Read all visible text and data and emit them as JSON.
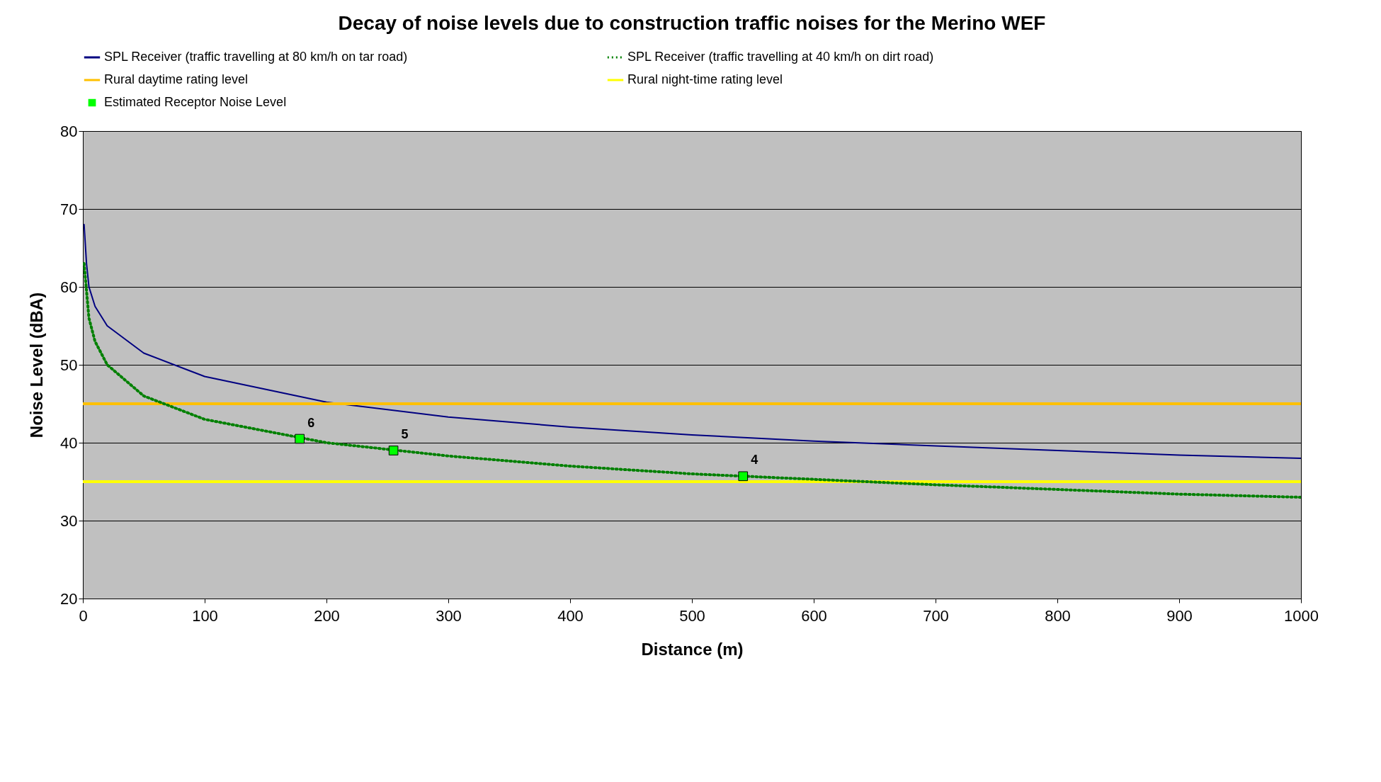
{
  "chart_data": {
    "type": "line",
    "title": "Decay of noise levels due to construction traffic noises for the Merino WEF",
    "xlabel": "Distance (m)",
    "ylabel": "Noise Level (dBA)",
    "annotations": [
      {
        "text": "6",
        "x": 178,
        "y": 40.5
      },
      {
        "text": "5",
        "x": 255,
        "y": 39
      },
      {
        "text": "4",
        "x": 542,
        "y": 35.7
      }
    ],
    "xlim": [
      0,
      1000
    ],
    "xticks": [
      0,
      100,
      200,
      300,
      400,
      500,
      600,
      700,
      800,
      900,
      1000
    ],
    "ylim": [
      20,
      80
    ],
    "yticks": [
      20,
      30,
      40,
      50,
      60,
      70,
      80
    ],
    "grid": "y",
    "legend": "top",
    "series": [
      {
        "name": "SPL Receiver  (traffic travelling  at 80 km/h  on tar road)",
        "line_style": "solid",
        "color": "#000080",
        "x": [
          1,
          3,
          5,
          10,
          20,
          50,
          100,
          200,
          300,
          400,
          500,
          600,
          700,
          800,
          900,
          1000
        ],
        "values": [
          68,
          63,
          60,
          57.5,
          55,
          51.5,
          48.5,
          45.2,
          43.3,
          42,
          41,
          40.2,
          39.6,
          39,
          38.4,
          38
        ]
      },
      {
        "name": "SPL Receiver  (traffic travelling  at 40 km/h  on dirt road)",
        "line_style": "dotted",
        "color": "#008000",
        "x": [
          1,
          5,
          10,
          20,
          50,
          100,
          200,
          300,
          400,
          500,
          600,
          700,
          800,
          900,
          1000
        ],
        "values": [
          63,
          56,
          53,
          50,
          46,
          43,
          40,
          38.3,
          37,
          36,
          35.3,
          34.6,
          34,
          33.4,
          33
        ]
      },
      {
        "name": "Estimated  Receptor  Noise Level",
        "type": "scatter",
        "marker": "square",
        "color": "#00ff00",
        "x": [
          178,
          255,
          542
        ],
        "values": [
          40.5,
          39,
          35.7
        ]
      }
    ],
    "ref_lines": [
      {
        "axis": "y",
        "value": 45,
        "label": "Rural daytime  rating  level",
        "color": "#ffc000"
      },
      {
        "axis": "y",
        "value": 35,
        "label": "Rural night-time  rating level",
        "color": "#ffff00"
      }
    ]
  }
}
